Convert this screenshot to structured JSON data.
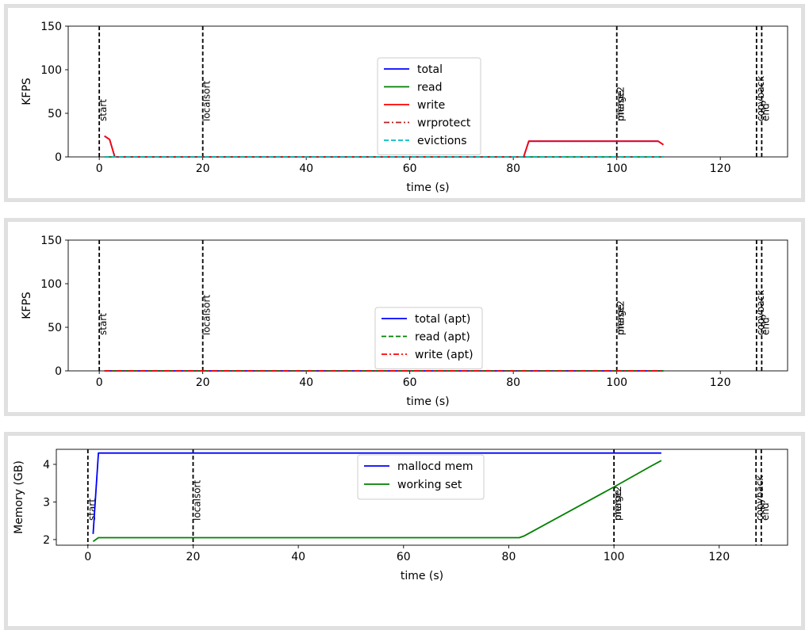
{
  "chart_data": [
    {
      "type": "line",
      "xlabel": "time (s)",
      "ylabel": "KFPS",
      "xlim": [
        -6,
        133
      ],
      "ylim": [
        0,
        150
      ],
      "xticks": [
        0,
        20,
        40,
        60,
        80,
        100,
        120
      ],
      "yticks": [
        0,
        50,
        100,
        150
      ],
      "grid": false,
      "legend_position": "center",
      "events": [
        {
          "label": "start",
          "x": 0
        },
        {
          "label": "localsort",
          "x": 20
        },
        {
          "label": "merge",
          "x": 100
        },
        {
          "label": "phase2",
          "x": 100
        },
        {
          "label": "copyback",
          "x": 127
        },
        {
          "label": "end",
          "x": 128
        }
      ],
      "series": [
        {
          "name": "total",
          "color": "#0000ff",
          "style": "solid",
          "x": [
            1,
            2,
            3,
            82,
            83,
            108,
            109
          ],
          "y": [
            24,
            20,
            0,
            0,
            18,
            18,
            14
          ]
        },
        {
          "name": "read",
          "color": "#008000",
          "style": "solid",
          "x": [
            1,
            109
          ],
          "y": [
            0,
            0
          ]
        },
        {
          "name": "write",
          "color": "#ff0000",
          "style": "solid",
          "x": [
            1,
            2,
            3,
            82,
            83,
            108,
            109
          ],
          "y": [
            24,
            20,
            0,
            0,
            18,
            18,
            14
          ]
        },
        {
          "name": "wrprotect",
          "color": "#b22222",
          "style": "dashdot",
          "x": [
            1,
            109
          ],
          "y": [
            0,
            0
          ]
        },
        {
          "name": "evictions",
          "color": "#00bfbf",
          "style": "dashed",
          "x": [
            1,
            109
          ],
          "y": [
            0,
            0
          ]
        }
      ]
    },
    {
      "type": "line",
      "xlabel": "time (s)",
      "ylabel": "KFPS",
      "xlim": [
        -6,
        133
      ],
      "ylim": [
        0,
        150
      ],
      "xticks": [
        0,
        20,
        40,
        60,
        80,
        100,
        120
      ],
      "yticks": [
        0,
        50,
        100,
        150
      ],
      "grid": false,
      "legend_position": "bottom-center",
      "events": [
        {
          "label": "start",
          "x": 0
        },
        {
          "label": "localsort",
          "x": 20
        },
        {
          "label": "merge",
          "x": 100
        },
        {
          "label": "phase2",
          "x": 100
        },
        {
          "label": "copyback",
          "x": 127
        },
        {
          "label": "end",
          "x": 128
        }
      ],
      "series": [
        {
          "name": "total (apt)",
          "color": "#0000ff",
          "style": "solid",
          "x": [
            1,
            109
          ],
          "y": [
            0,
            0
          ]
        },
        {
          "name": "read (apt)",
          "color": "#008000",
          "style": "dashed",
          "x": [
            1,
            109
          ],
          "y": [
            0,
            0
          ]
        },
        {
          "name": "write (apt)",
          "color": "#ff0000",
          "style": "dashdot",
          "x": [
            1,
            109
          ],
          "y": [
            0,
            0
          ]
        }
      ]
    },
    {
      "type": "line",
      "xlabel": "time (s)",
      "ylabel": "Memory (GB)",
      "xlim": [
        -6,
        133
      ],
      "ylim": [
        1.85,
        4.4
      ],
      "xticks": [
        0,
        20,
        40,
        60,
        80,
        100,
        120
      ],
      "yticks": [
        2,
        3,
        4
      ],
      "grid": false,
      "legend_position": "top-center",
      "events": [
        {
          "label": "start",
          "x": 0
        },
        {
          "label": "localsort",
          "x": 20
        },
        {
          "label": "merge",
          "x": 100
        },
        {
          "label": "phase2",
          "x": 100
        },
        {
          "label": "copyback",
          "x": 127
        },
        {
          "label": "end",
          "x": 128
        }
      ],
      "series": [
        {
          "name": "mallocd mem",
          "color": "#0000ff",
          "style": "solid",
          "x": [
            1,
            2,
            109
          ],
          "y": [
            2.15,
            4.3,
            4.3
          ]
        },
        {
          "name": "working set",
          "color": "#008000",
          "style": "solid",
          "x": [
            1,
            2,
            82,
            83,
            100,
            107,
            109
          ],
          "y": [
            1.95,
            2.05,
            2.05,
            2.1,
            3.4,
            3.95,
            4.1
          ]
        }
      ]
    }
  ]
}
